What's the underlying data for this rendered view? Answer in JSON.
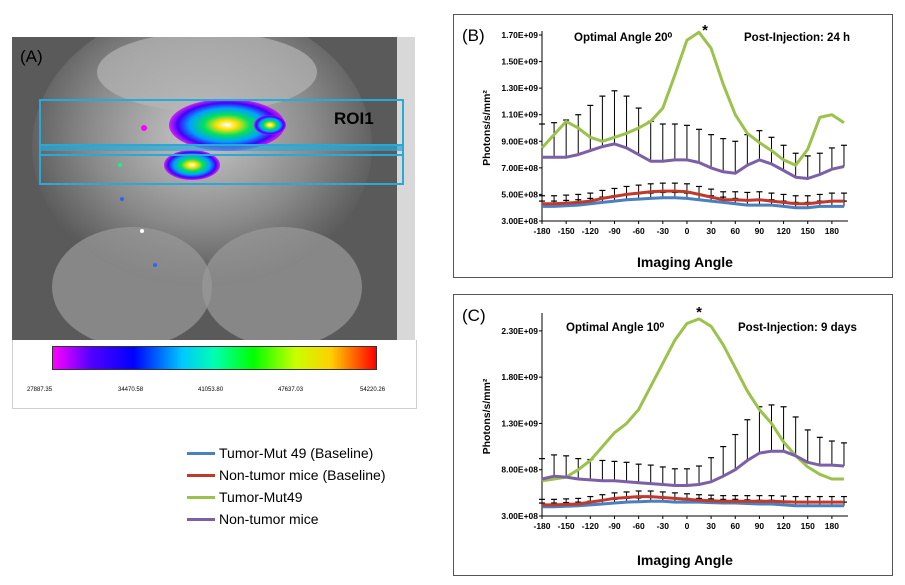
{
  "panel_a": {
    "label": "(A)",
    "roi_label": "ROI1",
    "colorbar_ticks": [
      "27887.35",
      "34470.58",
      "41053.80",
      "47637.03",
      "54220.26"
    ]
  },
  "legend": [
    {
      "label": "Tumor-Mut 49 (Baseline)",
      "color": "#4a7fc0"
    },
    {
      "label": "Non-tumor mice (Baseline)",
      "color": "#c0392b"
    },
    {
      "label": "Tumor-Mut49",
      "color": "#9bc24a"
    },
    {
      "label": "Non-tumor mice",
      "color": "#7d5fa8"
    }
  ],
  "chart_data": [
    {
      "type": "line",
      "panel_label": "(B)",
      "title": "Optimal Angle 20⁰",
      "annotation": "Post-Injection:  24 h",
      "peak_marker": "*",
      "xlabel": "Imaging Angle",
      "ylabel": "Photons/s/mm²",
      "x": [
        -180,
        -165,
        -150,
        -135,
        -120,
        -105,
        -90,
        -75,
        -60,
        -45,
        -30,
        -15,
        0,
        15,
        30,
        45,
        60,
        75,
        90,
        105,
        120,
        135,
        150,
        165,
        180,
        195
      ],
      "x_ticks": [
        -180,
        -150,
        -120,
        -90,
        -60,
        -30,
        0,
        30,
        60,
        90,
        120,
        150,
        180
      ],
      "ylim": [
        300000000.0,
        1700000000.0
      ],
      "y_ticks": [
        {
          "v": 300000000.0,
          "label": "3.00E+08"
        },
        {
          "v": 500000000.0,
          "label": "5.00E+08"
        },
        {
          "v": 700000000.0,
          "label": "7.00E+08"
        },
        {
          "v": 900000000.0,
          "label": "9.00E+08"
        },
        {
          "v": 1100000000.0,
          "label": "1.10E+09"
        },
        {
          "v": 1300000000.0,
          "label": "1.30E+09"
        },
        {
          "v": 1500000000.0,
          "label": "1.50E+09"
        },
        {
          "v": 1700000000.0,
          "label": "1.70E+09"
        }
      ],
      "series": [
        {
          "name": "Tumor-Mut 49 (Baseline)",
          "color": "#4a7fc0",
          "values": [
            410000000.0,
            410000000.0,
            415000000.0,
            420000000.0,
            430000000.0,
            440000000.0,
            450000000.0,
            460000000.0,
            465000000.0,
            470000000.0,
            475000000.0,
            475000000.0,
            470000000.0,
            460000000.0,
            450000000.0,
            440000000.0,
            430000000.0,
            420000000.0,
            420000000.0,
            420000000.0,
            410000000.0,
            400000000.0,
            400000000.0,
            410000000.0,
            410000000.0,
            410000000.0
          ],
          "err": [
            40000000.0,
            40000000.0,
            40000000.0,
            40000000.0,
            40000000.0,
            40000000.0,
            40000000.0,
            40000000.0,
            40000000.0,
            40000000.0,
            40000000.0,
            40000000.0,
            40000000.0,
            40000000.0,
            40000000.0,
            40000000.0,
            40000000.0,
            40000000.0,
            40000000.0,
            40000000.0,
            40000000.0,
            40000000.0,
            40000000.0,
            40000000.0,
            40000000.0,
            40000000.0
          ]
        },
        {
          "name": "Non-tumor mice (Baseline)",
          "color": "#c0392b",
          "values": [
            430000000.0,
            430000000.0,
            435000000.0,
            440000000.0,
            450000000.0,
            470000000.0,
            485000000.0,
            500000000.0,
            510000000.0,
            520000000.0,
            525000000.0,
            525000000.0,
            520000000.0,
            500000000.0,
            480000000.0,
            460000000.0,
            460000000.0,
            455000000.0,
            460000000.0,
            450000000.0,
            440000000.0,
            430000000.0,
            430000000.0,
            440000000.0,
            450000000.0,
            450000000.0
          ],
          "err": [
            60000000.0,
            60000000.0,
            60000000.0,
            60000000.0,
            60000000.0,
            60000000.0,
            60000000.0,
            60000000.0,
            60000000.0,
            60000000.0,
            60000000.0,
            60000000.0,
            60000000.0,
            60000000.0,
            60000000.0,
            60000000.0,
            60000000.0,
            60000000.0,
            60000000.0,
            60000000.0,
            60000000.0,
            60000000.0,
            60000000.0,
            60000000.0,
            60000000.0,
            60000000.0
          ]
        },
        {
          "name": "Tumor-Mut49",
          "color": "#9bc24a",
          "values": [
            850000000.0,
            950000000.0,
            1050000000.0,
            1000000000.0,
            930000000.0,
            900000000.0,
            930000000.0,
            960000000.0,
            1000000000.0,
            1050000000.0,
            1150000000.0,
            1400000000.0,
            1660000000.0,
            1720000000.0,
            1600000000.0,
            1330000000.0,
            1100000000.0,
            960000000.0,
            890000000.0,
            830000000.0,
            760000000.0,
            720000000.0,
            840000000.0,
            1080000000.0,
            1100000000.0,
            1040000000.0
          ],
          "err": null
        },
        {
          "name": "Non-tumor mice",
          "color": "#7d5fa8",
          "values": [
            780000000.0,
            780000000.0,
            780000000.0,
            800000000.0,
            830000000.0,
            860000000.0,
            880000000.0,
            850000000.0,
            800000000.0,
            750000000.0,
            750000000.0,
            760000000.0,
            760000000.0,
            740000000.0,
            700000000.0,
            670000000.0,
            660000000.0,
            720000000.0,
            760000000.0,
            730000000.0,
            680000000.0,
            630000000.0,
            620000000.0,
            650000000.0,
            690000000.0,
            710000000.0
          ],
          "err": [
            250000000.0,
            260000000.0,
            280000000.0,
            300000000.0,
            340000000.0,
            380000000.0,
            400000000.0,
            390000000.0,
            350000000.0,
            300000000.0,
            280000000.0,
            270000000.0,
            260000000.0,
            250000000.0,
            250000000.0,
            250000000.0,
            240000000.0,
            230000000.0,
            220000000.0,
            200000000.0,
            190000000.0,
            180000000.0,
            170000000.0,
            160000000.0,
            160000000.0,
            160000000.0
          ]
        }
      ]
    },
    {
      "type": "line",
      "panel_label": "(C)",
      "title": "Optimal Angle 10⁰",
      "annotation": "Post-Injection:  9 days",
      "peak_marker": "*",
      "xlabel": "Imaging Angle",
      "ylabel": "Photons/s/mm²",
      "x": [
        -180,
        -165,
        -150,
        -135,
        -120,
        -105,
        -90,
        -75,
        -60,
        -45,
        -30,
        -15,
        0,
        15,
        30,
        45,
        60,
        75,
        90,
        105,
        120,
        135,
        150,
        165,
        180,
        195
      ],
      "x_ticks": [
        -180,
        -150,
        -120,
        -90,
        -60,
        -30,
        0,
        30,
        60,
        90,
        120,
        150,
        180
      ],
      "ylim": [
        300000000.0,
        2450000000.0
      ],
      "y_ticks": [
        {
          "v": 300000000.0,
          "label": "3.00E+08"
        },
        {
          "v": 800000000.0,
          "label": "8.00E+08"
        },
        {
          "v": 1300000000.0,
          "label": "1.30E+09"
        },
        {
          "v": 1800000000.0,
          "label": "1.80E+09"
        },
        {
          "v": 2300000000.0,
          "label": "2.30E+09"
        }
      ],
      "series": [
        {
          "name": "Tumor-Mut 49 (Baseline)",
          "color": "#4a7fc0",
          "values": [
            400000000.0,
            400000000.0,
            405000000.0,
            410000000.0,
            420000000.0,
            430000000.0,
            440000000.0,
            450000000.0,
            455000000.0,
            460000000.0,
            460000000.0,
            450000000.0,
            450000000.0,
            450000000.0,
            445000000.0,
            440000000.0,
            440000000.0,
            435000000.0,
            430000000.0,
            430000000.0,
            420000000.0,
            410000000.0,
            410000000.0,
            410000000.0,
            410000000.0,
            410000000.0
          ],
          "err": [
            40000000.0,
            40000000.0,
            40000000.0,
            40000000.0,
            40000000.0,
            40000000.0,
            40000000.0,
            40000000.0,
            40000000.0,
            40000000.0,
            40000000.0,
            40000000.0,
            40000000.0,
            40000000.0,
            40000000.0,
            40000000.0,
            40000000.0,
            40000000.0,
            40000000.0,
            40000000.0,
            40000000.0,
            40000000.0,
            40000000.0,
            40000000.0,
            40000000.0,
            40000000.0
          ]
        },
        {
          "name": "Non-tumor mice (Baseline)",
          "color": "#c0392b",
          "values": [
            420000000.0,
            420000000.0,
            425000000.0,
            430000000.0,
            450000000.0,
            470000000.0,
            490000000.0,
            500000000.0,
            510000000.0,
            510000000.0,
            500000000.0,
            490000000.0,
            480000000.0,
            470000000.0,
            465000000.0,
            460000000.0,
            460000000.0,
            460000000.0,
            460000000.0,
            460000000.0,
            455000000.0,
            450000000.0,
            450000000.0,
            450000000.0,
            450000000.0,
            450000000.0
          ],
          "err": [
            60000000.0,
            60000000.0,
            60000000.0,
            60000000.0,
            60000000.0,
            60000000.0,
            60000000.0,
            60000000.0,
            60000000.0,
            60000000.0,
            60000000.0,
            60000000.0,
            60000000.0,
            60000000.0,
            60000000.0,
            60000000.0,
            60000000.0,
            60000000.0,
            60000000.0,
            60000000.0,
            60000000.0,
            60000000.0,
            60000000.0,
            60000000.0,
            60000000.0,
            60000000.0
          ]
        },
        {
          "name": "Tumor-Mut49",
          "color": "#9bc24a",
          "values": [
            680000000.0,
            700000000.0,
            720000000.0,
            800000000.0,
            900000000.0,
            1050000000.0,
            1200000000.0,
            1300000000.0,
            1450000000.0,
            1700000000.0,
            1950000000.0,
            2200000000.0,
            2380000000.0,
            2430000000.0,
            2350000000.0,
            2150000000.0,
            1900000000.0,
            1650000000.0,
            1450000000.0,
            1300000000.0,
            1100000000.0,
            950000000.0,
            830000000.0,
            750000000.0,
            700000000.0,
            700000000.0
          ],
          "err": null
        },
        {
          "name": "Non-tumor mice",
          "color": "#7d5fa8",
          "values": [
            700000000.0,
            730000000.0,
            720000000.0,
            700000000.0,
            690000000.0,
            680000000.0,
            680000000.0,
            670000000.0,
            660000000.0,
            650000000.0,
            640000000.0,
            630000000.0,
            630000000.0,
            640000000.0,
            670000000.0,
            730000000.0,
            800000000.0,
            900000000.0,
            980000000.0,
            1000000000.0,
            1000000000.0,
            950000000.0,
            880000000.0,
            850000000.0,
            850000000.0,
            840000000.0
          ],
          "err": [
            220000000.0,
            230000000.0,
            230000000.0,
            220000000.0,
            220000000.0,
            220000000.0,
            210000000.0,
            210000000.0,
            200000000.0,
            200000000.0,
            190000000.0,
            180000000.0,
            180000000.0,
            200000000.0,
            260000000.0,
            320000000.0,
            380000000.0,
            440000000.0,
            500000000.0,
            500000000.0,
            480000000.0,
            420000000.0,
            350000000.0,
            300000000.0,
            260000000.0,
            250000000.0
          ]
        }
      ]
    }
  ]
}
